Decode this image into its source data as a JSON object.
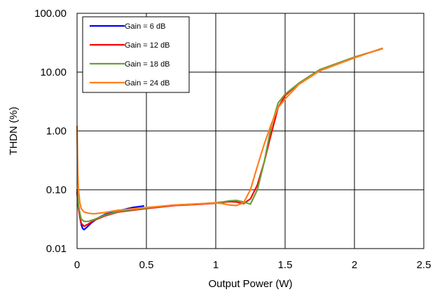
{
  "chart_data": {
    "type": "line",
    "title": "",
    "xlabel": "Output Power (W)",
    "ylabel": "THDN (%)",
    "xscale": "linear",
    "yscale": "log",
    "xlim": [
      0,
      2.5
    ],
    "ylim": [
      0.01,
      100
    ],
    "x_ticks": [
      "0",
      "0.5",
      "1",
      "1.5",
      "2",
      "2.5"
    ],
    "y_ticks": [
      "0.01",
      "0.10",
      "1.00",
      "10.00",
      "100.00"
    ],
    "grid": true,
    "legend_position": "top-left",
    "series": [
      {
        "name": "Gain = 6 dB",
        "color": "#0000ff",
        "x": [
          0.0,
          0.01,
          0.02,
          0.03,
          0.04,
          0.05,
          0.07,
          0.1,
          0.15,
          0.2,
          0.3,
          0.4,
          0.48
        ],
        "y": [
          0.09,
          0.05,
          0.035,
          0.026,
          0.022,
          0.021,
          0.023,
          0.027,
          0.033,
          0.038,
          0.044,
          0.05,
          0.053
        ]
      },
      {
        "name": "Gain = 12 dB",
        "color": "#ff0000",
        "x": [
          0.0,
          0.01,
          0.02,
          0.03,
          0.05,
          0.08,
          0.12,
          0.2,
          0.3,
          0.5,
          0.7,
          0.9,
          1.0,
          1.05,
          1.1,
          1.15,
          1.2,
          1.25,
          1.3,
          1.35,
          1.4,
          1.45,
          1.5,
          1.6,
          1.75,
          2.0,
          2.2
        ],
        "y": [
          0.1,
          0.05,
          0.035,
          0.027,
          0.024,
          0.026,
          0.03,
          0.036,
          0.042,
          0.048,
          0.054,
          0.057,
          0.059,
          0.061,
          0.063,
          0.062,
          0.058,
          0.07,
          0.12,
          0.3,
          0.9,
          2.5,
          4.0,
          6.5,
          11.0,
          18.0,
          25.0
        ]
      },
      {
        "name": "Gain = 18 dB",
        "color": "#6a9f3a",
        "x": [
          0.0,
          0.01,
          0.02,
          0.03,
          0.05,
          0.08,
          0.12,
          0.2,
          0.3,
          0.5,
          0.7,
          0.9,
          1.0,
          1.05,
          1.1,
          1.15,
          1.2,
          1.25,
          1.3,
          1.35,
          1.4,
          1.45,
          1.5,
          1.6,
          1.75,
          2.0,
          2.2
        ],
        "y": [
          0.1,
          0.055,
          0.04,
          0.032,
          0.029,
          0.029,
          0.031,
          0.037,
          0.043,
          0.049,
          0.055,
          0.058,
          0.06,
          0.062,
          0.065,
          0.066,
          0.062,
          0.057,
          0.1,
          0.3,
          1.2,
          3.0,
          4.2,
          6.5,
          11.0,
          18.0,
          25.0
        ]
      },
      {
        "name": "Gain = 24 dB",
        "color": "#ff7f1e",
        "x": [
          0.0,
          0.005,
          0.01,
          0.02,
          0.03,
          0.05,
          0.08,
          0.12,
          0.2,
          0.3,
          0.5,
          0.7,
          0.9,
          1.0,
          1.05,
          1.1,
          1.15,
          1.2,
          1.25,
          1.3,
          1.35,
          1.4,
          1.45,
          1.5,
          1.6,
          1.75,
          2.0,
          2.2
        ],
        "y": [
          1.2,
          0.2,
          0.1,
          0.06,
          0.048,
          0.042,
          0.04,
          0.039,
          0.041,
          0.045,
          0.05,
          0.055,
          0.058,
          0.06,
          0.058,
          0.055,
          0.054,
          0.06,
          0.1,
          0.25,
          0.6,
          1.3,
          2.5,
          3.5,
          6.2,
          10.5,
          17.5,
          25.5
        ]
      }
    ]
  }
}
